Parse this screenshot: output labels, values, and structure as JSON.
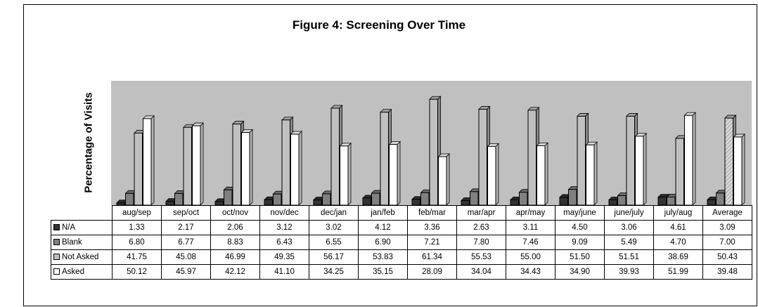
{
  "chart_data": {
    "type": "bar",
    "title": "Figure 4: Screening Over Time",
    "ylabel": "Percentage of Visits",
    "xlabel": "",
    "ylim": [
      0,
      70
    ],
    "grid": false,
    "legend": "data-table-rows",
    "categories": [
      "aug/sep",
      "sep/oct",
      "oct/nov",
      "nov/dec",
      "dec/jan",
      "jan/feb",
      "feb/mar",
      "mar/apr",
      "apr/may",
      "may/june",
      "june/july",
      "july/aug",
      "Average"
    ],
    "series": [
      {
        "name": "N/A",
        "color": "#333333",
        "values": [
          1.33,
          2.17,
          2.06,
          3.12,
          3.02,
          4.12,
          3.36,
          2.63,
          3.11,
          4.5,
          3.06,
          4.61,
          3.09
        ]
      },
      {
        "name": "Blank",
        "color": "#808080",
        "values": [
          6.8,
          6.77,
          8.83,
          6.43,
          6.55,
          6.9,
          7.21,
          7.8,
          7.46,
          9.09,
          5.49,
          4.7,
          7.0
        ]
      },
      {
        "name": "Not Asked",
        "color": "#c0c0c0",
        "values": [
          41.75,
          45.08,
          46.99,
          49.35,
          56.17,
          53.83,
          61.34,
          55.53,
          55.0,
          51.5,
          51.51,
          38.69,
          50.43
        ]
      },
      {
        "name": "Asked",
        "color": "#ffffff",
        "values": [
          50.12,
          45.97,
          42.12,
          41.1,
          34.25,
          35.15,
          28.09,
          34.04,
          34.43,
          34.9,
          39.93,
          51.99,
          39.48
        ]
      }
    ],
    "display_values": [
      [
        "1.33",
        "2.17",
        "2.06",
        "3.12",
        "3.02",
        "4.12",
        "3.36",
        "2.63",
        "3.11",
        "4.50",
        "3.06",
        "4.61",
        "3.09"
      ],
      [
        "6.80",
        "6.77",
        "8.83",
        "6.43",
        "6.55",
        "6.90",
        "7.21",
        "7.80",
        "7.46",
        "9.09",
        "5.49",
        "4.70",
        "7.00"
      ],
      [
        "41.75",
        "45.08",
        "46.99",
        "49.35",
        "56.17",
        "53.83",
        "61.34",
        "55.53",
        "55.00",
        "51.50",
        "51.51",
        "38.69",
        "50.43"
      ],
      [
        "50.12",
        "45.97",
        "42.12",
        "41.10",
        "34.25",
        "35.15",
        "28.09",
        "34.04",
        "34.43",
        "34.90",
        "39.93",
        "51.99",
        "39.48"
      ]
    ],
    "plot_background": "#c0c0c0"
  }
}
